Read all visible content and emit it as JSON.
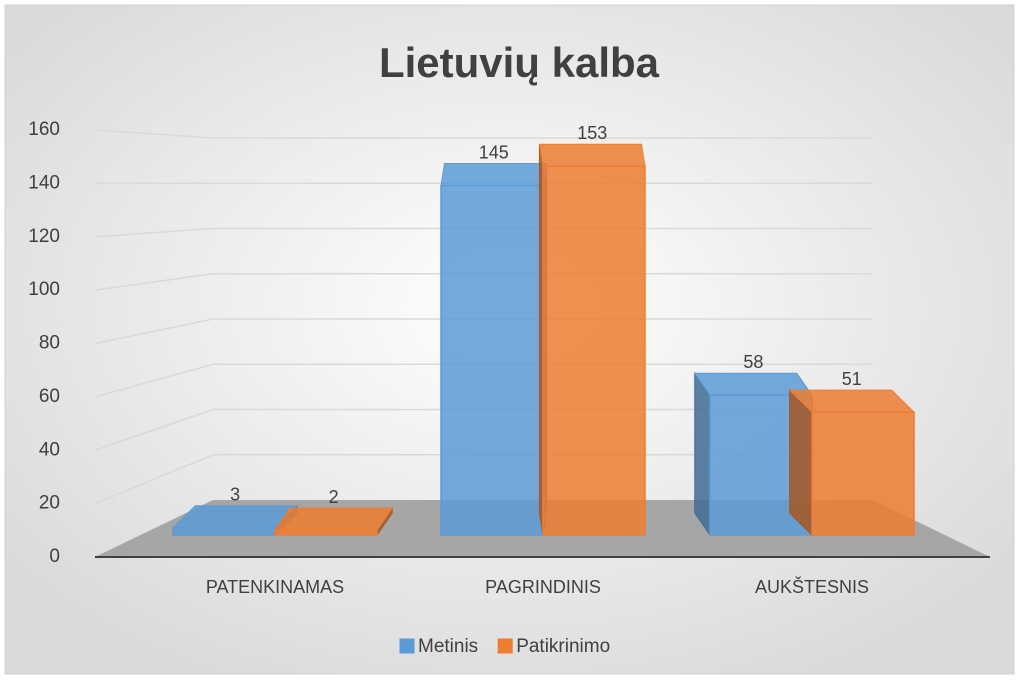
{
  "chart_data": {
    "type": "bar3d",
    "title": "Lietuvių kalba",
    "categories": [
      "PATENKINAMAS",
      "PAGRINDINIS",
      "AUKŠTESNIS"
    ],
    "series": [
      {
        "name": "Metinis",
        "color": "#5b9bd5",
        "values": [
          3,
          145,
          58
        ]
      },
      {
        "name": "Patikrinimo",
        "color": "#ed7d31",
        "values": [
          2,
          153,
          51
        ]
      }
    ],
    "ylim": [
      0,
      160
    ],
    "yticks": [
      0,
      20,
      40,
      60,
      80,
      100,
      120,
      140,
      160
    ],
    "grid": true,
    "legend": "bottom"
  }
}
